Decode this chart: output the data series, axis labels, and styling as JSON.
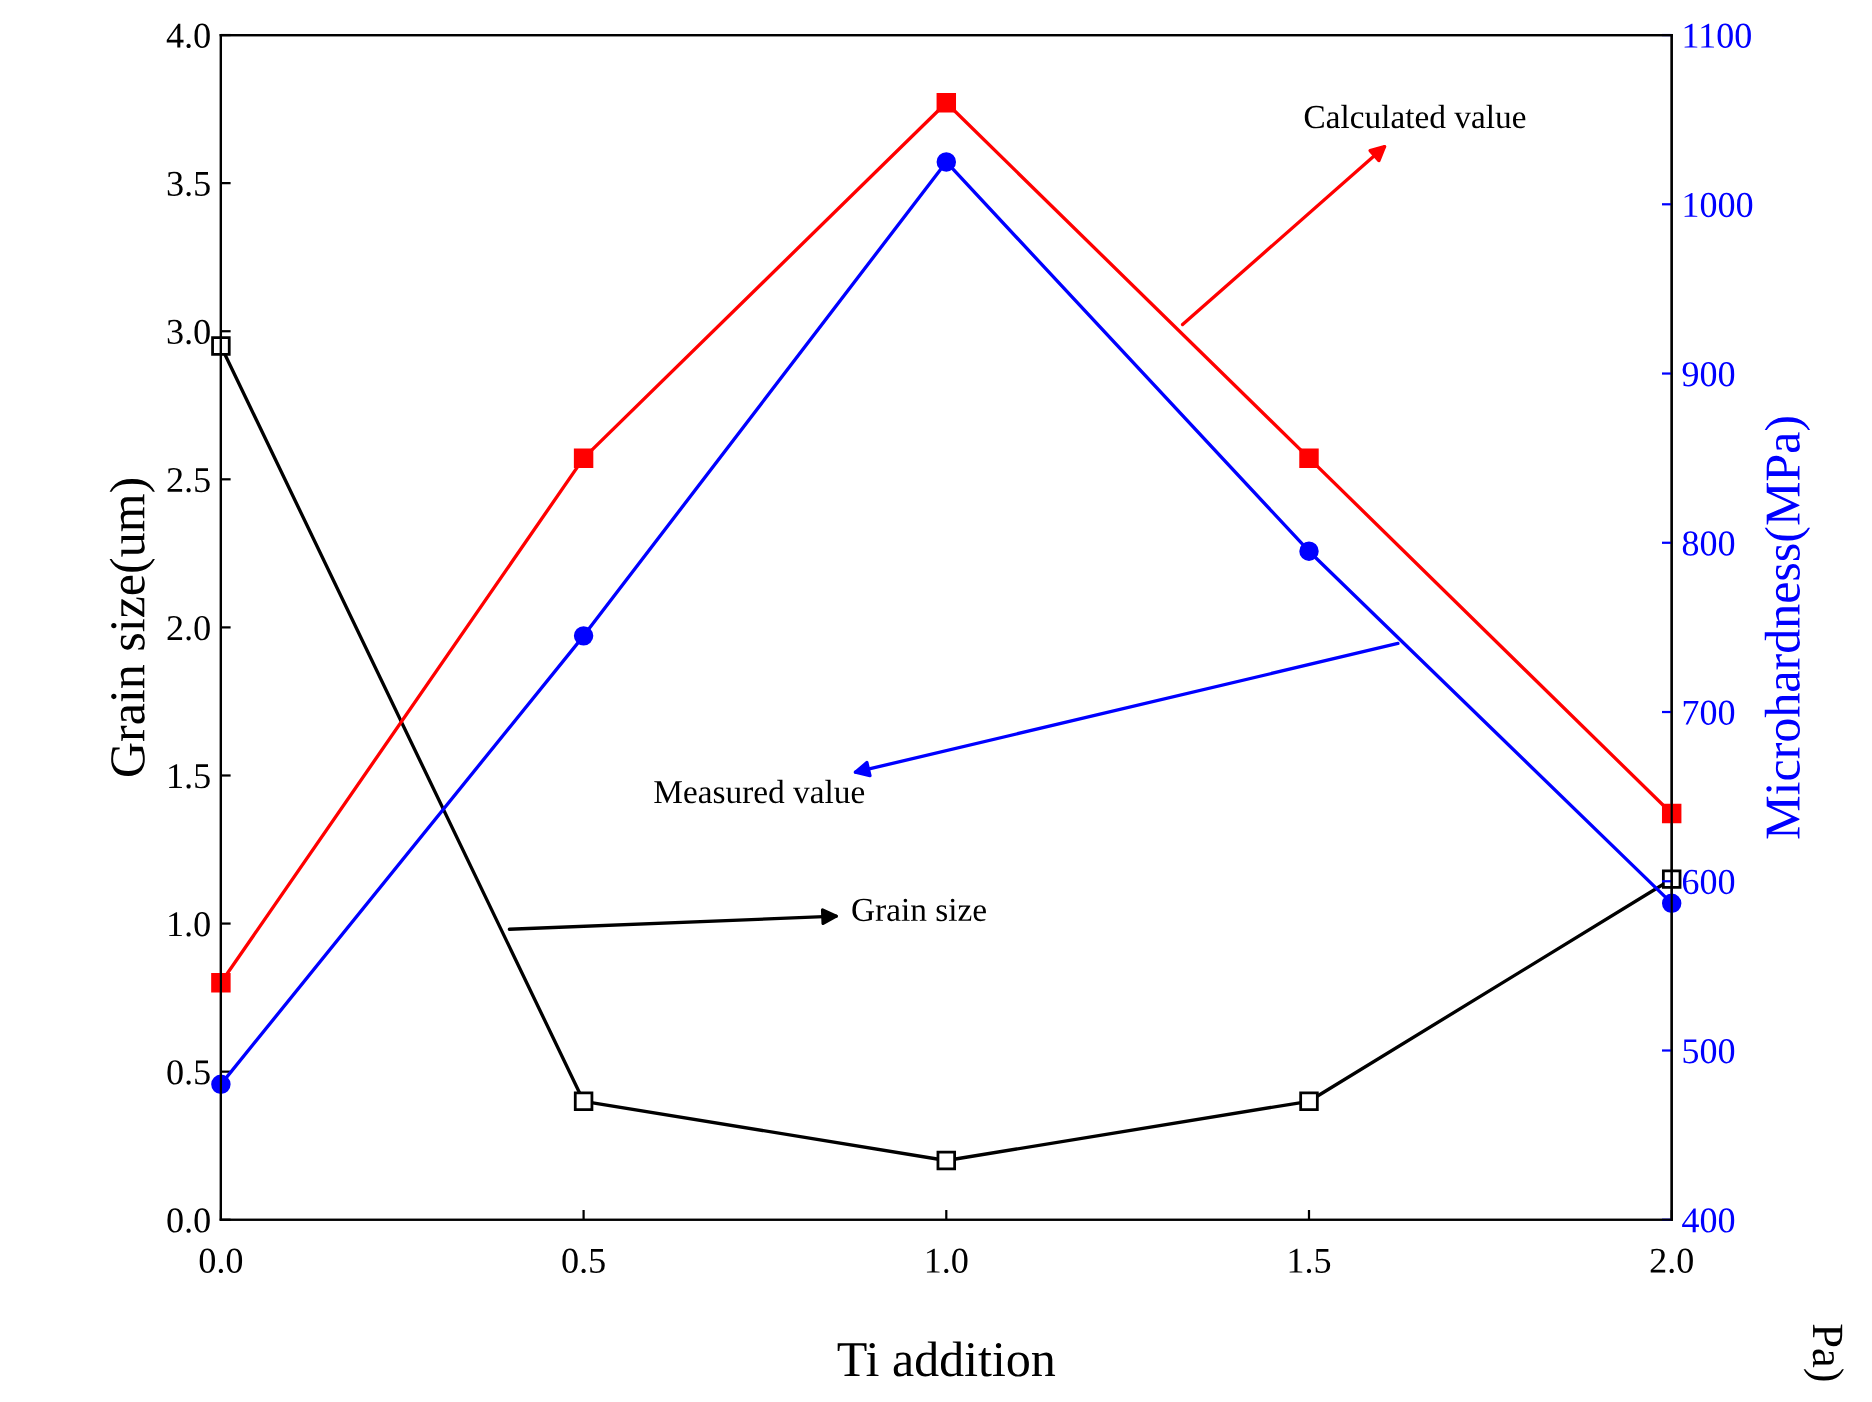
{
  "chart_data": {
    "type": "line",
    "xlabel": "Ti addition",
    "ylabel": "Grain size(um)",
    "y2label": "Microhardness(MPa)",
    "x": [
      0,
      0.5,
      1,
      1.5,
      2
    ],
    "series": [
      {
        "color": "#000000",
        "marker": "square",
        "values": [
          2.95,
          0.4,
          0.2,
          0.4,
          1.15
        ]
      },
      {
        "color": "#ff0000",
        "marker": "square",
        "axis": "y2",
        "values": [
          540,
          850,
          1060,
          850,
          640
        ]
      },
      {
        "color": "#0000ff",
        "marker": "circle",
        "axis": "y2",
        "values": [
          480,
          745,
          1025,
          795,
          587
        ]
      }
    ],
    "xlim": [
      0,
      2
    ],
    "xticks": [
      {
        "value": 0,
        "label": "0.0"
      },
      {
        "value": 0.5,
        "label": "0.5"
      },
      {
        "value": 1,
        "label": "1.0"
      },
      {
        "value": 1.5,
        "label": "1.5"
      },
      {
        "value": 2,
        "label": "2.0"
      }
    ],
    "ylim": [
      0,
      4
    ],
    "yticks": [
      {
        "value": 0,
        "label": "0.0"
      },
      {
        "value": 0.5,
        "label": "0.5"
      },
      {
        "value": 1,
        "label": "1.0"
      },
      {
        "value": 1.5,
        "label": "1.5"
      },
      {
        "value": 2,
        "label": "2.0"
      },
      {
        "value": 2.5,
        "label": "2.5"
      },
      {
        "value": 3,
        "label": "3.0"
      },
      {
        "value": 3.5,
        "label": "3.5"
      },
      {
        "value": 4,
        "label": "4.0"
      }
    ],
    "y2lim": [
      400,
      1100
    ],
    "y2ticks": [
      400,
      500,
      600,
      700,
      800,
      900,
      1000,
      1100
    ],
    "annotations": [
      {
        "text": "Calculated value",
        "x": 1.32,
        "y": 3.01
      },
      {
        "text": "Measured value",
        "x": 1.63,
        "y": 1.95
      },
      {
        "text": "Grain size",
        "x": 0.39,
        "y": 0.98
      },
      "Pa)"
    ],
    "grid": false,
    "legend": false
  }
}
